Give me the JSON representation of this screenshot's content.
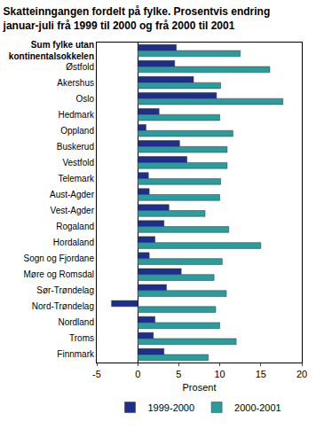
{
  "chart_data": {
    "type": "bar",
    "orientation": "horizontal",
    "title": "Skatteinngangen fordelt på fylke. Prosentvis endring\njanuar-juli frå 1999 til 2000 og frå 2000 til 2001",
    "x_label": "Prosent",
    "categories": [
      "Sum fylke utan\nkontinentalsokkelen",
      "Østfold",
      "Akershus",
      "Oslo",
      "Hedmark",
      "Oppland",
      "Buskerud",
      "Vestfold",
      "Telemark",
      "Aust-Agder",
      "Vest-Agder",
      "Rogaland",
      "Hordaland",
      "Sogn og Fjordane",
      "Møre og Romsdal",
      "Sør-Trøndelag",
      "Nord-Trøndelag",
      "Nordland",
      "Troms",
      "Finnmark"
    ],
    "series": [
      {
        "name": "1999-2000",
        "color": "#1c2f8f",
        "values": [
          4.7,
          4.5,
          6.8,
          9.6,
          2.6,
          1.0,
          5.1,
          6.0,
          1.3,
          1.4,
          3.8,
          3.2,
          2.1,
          1.4,
          5.3,
          3.5,
          -3.2,
          2.1,
          1.9,
          3.2
        ]
      },
      {
        "name": "2000-2001",
        "color": "#2b9c9c",
        "values": [
          12.5,
          16.1,
          10.1,
          17.7,
          10.0,
          11.6,
          10.9,
          10.9,
          10.1,
          10.0,
          8.2,
          11.1,
          15.0,
          10.3,
          9.3,
          10.8,
          9.5,
          10.0,
          12.0,
          8.6
        ]
      }
    ],
    "xlim": [
      -5,
      20
    ],
    "xticks": [
      -5,
      0,
      5,
      10,
      15,
      20
    ],
    "grid": false,
    "legend": "bottom"
  }
}
